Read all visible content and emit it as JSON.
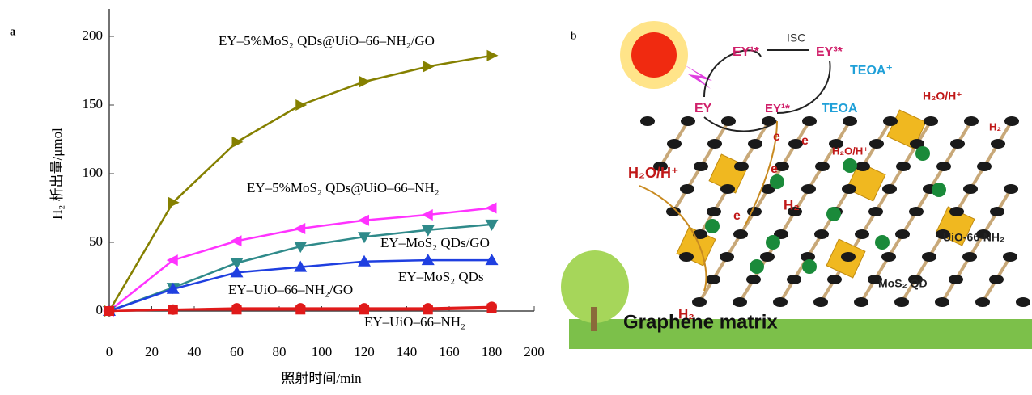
{
  "chart_data": {
    "type": "line",
    "panel_label": "a",
    "x_label": "照射时间/min",
    "y_label": "H₂ 析出量/μmol",
    "x": [
      0,
      30,
      60,
      90,
      120,
      150,
      180
    ],
    "xlim": [
      0,
      200
    ],
    "xticks": [
      0,
      20,
      40,
      60,
      80,
      100,
      120,
      140,
      160,
      180,
      200
    ],
    "ylim": [
      0,
      220
    ],
    "yticks": [
      0,
      50,
      100,
      150,
      200
    ],
    "series": [
      {
        "name": "EY–5%MoS₂ QDs@UiO–66–NH₂/GO",
        "color": "#858000",
        "marker": "triangle-right",
        "values": [
          0,
          79,
          123,
          150,
          167,
          178,
          186
        ]
      },
      {
        "name": "EY–5%MoS₂ QDs@UiO–66–NH₂",
        "color": "#ff33ff",
        "marker": "triangle-left",
        "values": [
          0,
          37,
          51,
          60,
          66,
          70,
          75
        ]
      },
      {
        "name": "EY–MoS₂ QDs/GO",
        "color": "#2f8a8a",
        "marker": "triangle-down",
        "values": [
          0,
          17,
          35,
          47,
          54,
          59,
          63
        ]
      },
      {
        "name": "EY–MoS₂ QDs",
        "color": "#1f3fe0",
        "marker": "triangle-up",
        "values": [
          0,
          16,
          28,
          32,
          36,
          37,
          37
        ]
      },
      {
        "name": "EY–UiO–66–NH₂/GO",
        "color": "#e01a1a",
        "marker": "circle",
        "values": [
          0,
          1,
          2,
          2,
          2,
          2,
          3
        ]
      },
      {
        "name": "EY–UiO–66–NH₂",
        "color": "#e01a1a",
        "marker": "square",
        "values": [
          0,
          1,
          1,
          1,
          1,
          1,
          2
        ]
      }
    ]
  },
  "diagram": {
    "panel_label": "b",
    "labels": [
      "EY¹*",
      "ISC",
      "EY³*",
      "TEOA⁺",
      "EY",
      "EY¹*",
      "TEOA",
      "H₂O/H⁺",
      "H₂",
      "H₂O/H⁺",
      "H₂O/H⁺",
      "H₂",
      "H₂",
      "e",
      "e",
      "e",
      "e",
      "UiO-66-NH₂",
      "MoS₂ QD",
      "Graphene matrix"
    ]
  }
}
